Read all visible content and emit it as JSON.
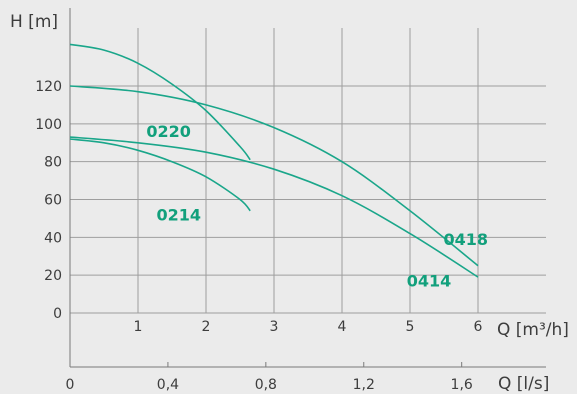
{
  "chart_data": {
    "type": "line",
    "title": "",
    "ylabel": "H [m]",
    "xlabel_primary": "Q [m³/h]",
    "xlabel_secondary": "Q [l/s]",
    "ylim": [
      0,
      145
    ],
    "xlim": [
      0,
      6.25
    ],
    "yticks": [
      0,
      20,
      40,
      60,
      80,
      100,
      120
    ],
    "ytick_labels": [
      "0",
      "20",
      "40",
      "60",
      "80",
      "100",
      "120"
    ],
    "xticks_primary": [
      1,
      2,
      3,
      4,
      5,
      6
    ],
    "xtick_labels_primary": [
      "1",
      "2",
      "3",
      "4",
      "5",
      "6"
    ],
    "xticks_secondary_lps": [
      0,
      0.4,
      0.8,
      1.2,
      1.6
    ],
    "xtick_labels_secondary": [
      "0",
      "0,4",
      "0,8",
      "1,2",
      "1,6"
    ],
    "grid": true,
    "legend": "none (inline curve labels)",
    "colors": {
      "background": "#ebebeb",
      "grid": "#9e9e9e",
      "axis": "#7a7a7a",
      "curve": "#1aa68a",
      "series_label": "#12a07c",
      "text": "#3d3d3d"
    },
    "series": [
      {
        "name": "0220",
        "x": [
          0,
          0.5,
          1.0,
          1.5,
          2.0,
          2.5,
          2.65
        ],
        "y": [
          142,
          139,
          132,
          121,
          107,
          88,
          81
        ]
      },
      {
        "name": "0418",
        "x": [
          0,
          1,
          2,
          3,
          4,
          5,
          6
        ],
        "y": [
          120,
          117,
          110,
          98,
          80,
          54,
          25
        ]
      },
      {
        "name": "0414",
        "x": [
          0,
          1,
          2,
          3,
          4,
          5,
          6
        ],
        "y": [
          93,
          90,
          85,
          76,
          62,
          42,
          19
        ]
      },
      {
        "name": "0214",
        "x": [
          0,
          0.5,
          1.0,
          1.5,
          2.0,
          2.5,
          2.65
        ],
        "y": [
          92,
          90,
          86,
          80,
          72,
          60,
          54
        ]
      }
    ]
  }
}
